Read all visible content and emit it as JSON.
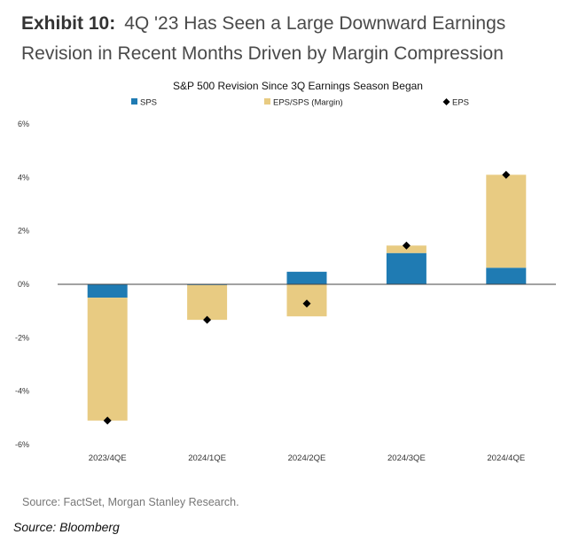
{
  "header": {
    "exhibit_label": "Exhibit 10:",
    "exhibit_title": "4Q '23 Has Seen a Large Downward Earnings Revision in Recent Months Driven by Margin Compression"
  },
  "chart_data": {
    "type": "bar",
    "stacked": true,
    "title": "S&P 500 Revision Since 3Q Earnings Season Began",
    "categories": [
      "2023/4QE",
      "2024/1QE",
      "2024/2QE",
      "2024/3QE",
      "2024/4QE"
    ],
    "series": [
      {
        "name": "SPS",
        "kind": "bar",
        "color": "#1f7bb3",
        "values": [
          -0.5,
          -0.03,
          0.47,
          1.17,
          0.62
        ]
      },
      {
        "name": "EPS/SPS (Margin)",
        "kind": "bar",
        "color": "#e8cb82",
        "values": [
          -4.6,
          -1.3,
          -1.2,
          0.28,
          3.48
        ]
      },
      {
        "name": "EPS",
        "kind": "marker",
        "color": "#000000",
        "values": [
          -5.1,
          -1.33,
          -0.72,
          1.45,
          4.1
        ]
      }
    ],
    "ylim": [
      -6,
      6
    ],
    "yticks": [
      "6%",
      "4%",
      "2%",
      "0%",
      "-2%",
      "-4%",
      "-6%"
    ],
    "ytick_values": [
      6,
      4,
      2,
      0,
      -2,
      -4,
      -6
    ],
    "legend_position": "top"
  },
  "footer": {
    "source": "Source: FactSet, Morgan Stanley Research.",
    "credit": "Source: Bloomberg"
  }
}
